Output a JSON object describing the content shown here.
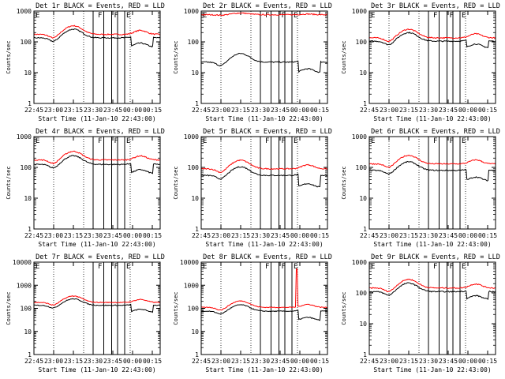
{
  "chart_data": [
    {
      "type": "line",
      "title": "Det 1r BLACK = Events, RED = LLD",
      "xlabel": "Start Time (11-Jan-10 22:43:00)",
      "ylabel": "Counts/sec",
      "yscale": "log",
      "ylim": [
        1,
        1000
      ],
      "x_ticks": [
        "22:45",
        "23:00",
        "23:15",
        "23:30",
        "23:45",
        "00:00",
        "00:15"
      ],
      "y_ticks": [
        "1",
        "10",
        "100",
        "1000"
      ],
      "markers": [
        "F",
        "F",
        "E"
      ],
      "series": [
        {
          "color": "#ff0000",
          "base": 175,
          "amp": 1.0,
          "drop": 1.0
        },
        {
          "color": "#000000",
          "base": 135,
          "amp": 1.0,
          "drop": 0.5
        }
      ]
    },
    {
      "type": "line",
      "title": "Det 2r BLACK = Events, RED = LLD",
      "xlabel": "Start Time (11-Jan-10 22:43:00)",
      "ylabel": "Counts/sec",
      "yscale": "log",
      "ylim": [
        1,
        1000
      ],
      "x_ticks": [
        "22:45",
        "23:00",
        "23:15",
        "23:30",
        "23:45",
        "00:00",
        "00:15"
      ],
      "y_ticks": [
        "1",
        "10",
        "100",
        "1000"
      ],
      "markers": [
        "F",
        "F",
        "E"
      ],
      "series": [
        {
          "color": "#ff0000",
          "base": 760,
          "amp": 0.15,
          "drop": 1.0
        },
        {
          "color": "#000000",
          "base": 22,
          "amp": 1.0,
          "drop": 0.45
        }
      ]
    },
    {
      "type": "line",
      "title": "Det 3r BLACK = Events, RED = LLD",
      "xlabel": "Start Time (11-Jan-10 22:43:00)",
      "ylabel": "Counts/sec",
      "yscale": "log",
      "ylim": [
        1,
        1000
      ],
      "x_ticks": [
        "22:45",
        "23:00",
        "23:15",
        "23:30",
        "23:45",
        "00:00",
        "00:15"
      ],
      "y_ticks": [
        "1",
        "10",
        "100",
        "1000"
      ],
      "markers": [
        "F",
        "F",
        "E"
      ],
      "series": [
        {
          "color": "#ff0000",
          "base": 135,
          "amp": 1.0,
          "drop": 1.0
        },
        {
          "color": "#000000",
          "base": 105,
          "amp": 1.0,
          "drop": 0.6
        }
      ]
    },
    {
      "type": "line",
      "title": "Det 4r BLACK = Events, RED = LLD",
      "xlabel": "Start Time (11-Jan-10 22:43:00)",
      "ylabel": "Counts/sec",
      "yscale": "log",
      "ylim": [
        1,
        1000
      ],
      "x_ticks": [
        "22:45",
        "23:00",
        "23:15",
        "23:30",
        "23:45",
        "00:00",
        "00:15"
      ],
      "y_ticks": [
        "1",
        "10",
        "100",
        "1000"
      ],
      "markers": [
        "F",
        "F",
        "E"
      ],
      "series": [
        {
          "color": "#ff0000",
          "base": 175,
          "amp": 1.0,
          "drop": 1.0
        },
        {
          "color": "#000000",
          "base": 125,
          "amp": 1.0,
          "drop": 0.5
        }
      ]
    },
    {
      "type": "line",
      "title": "Det 5r BLACK = Events, RED = LLD",
      "xlabel": "Start Time (11-Jan-10 22:43:00)",
      "ylabel": "Counts/sec",
      "yscale": "log",
      "ylim": [
        1,
        1000
      ],
      "x_ticks": [
        "22:45",
        "23:00",
        "23:15",
        "23:30",
        "23:45",
        "00:00",
        "00:15"
      ],
      "y_ticks": [
        "1",
        "10",
        "100",
        "1000"
      ],
      "markers": [
        "F",
        "F",
        "E"
      ],
      "series": [
        {
          "color": "#ff0000",
          "base": 90,
          "amp": 1.0,
          "drop": 1.0
        },
        {
          "color": "#000000",
          "base": 55,
          "amp": 1.0,
          "drop": 0.4
        }
      ]
    },
    {
      "type": "line",
      "title": "Det 6r BLACK = Events, RED = LLD",
      "xlabel": "Start Time (11-Jan-10 22:43:00)",
      "ylabel": "Counts/sec",
      "yscale": "log",
      "ylim": [
        1,
        1000
      ],
      "x_ticks": [
        "22:45",
        "23:00",
        "23:15",
        "23:30",
        "23:45",
        "00:00",
        "00:15"
      ],
      "y_ticks": [
        "1",
        "10",
        "100",
        "1000"
      ],
      "markers": [
        "F",
        "F",
        "E"
      ],
      "series": [
        {
          "color": "#ff0000",
          "base": 130,
          "amp": 1.0,
          "drop": 1.0
        },
        {
          "color": "#000000",
          "base": 80,
          "amp": 1.0,
          "drop": 0.45
        }
      ]
    },
    {
      "type": "line",
      "title": "Det 7r BLACK = Events, RED = LLD",
      "xlabel": "Start Time (11-Jan-10 22:43:00)",
      "ylabel": "Counts/sec",
      "yscale": "log",
      "ylim": [
        1,
        10000
      ],
      "x_ticks": [
        "22:45",
        "23:00",
        "23:15",
        "23:30",
        "23:45",
        "00:00",
        "00:15"
      ],
      "y_ticks": [
        "1",
        "10",
        "100",
        "1000",
        "10000"
      ],
      "markers": [
        "F",
        "F",
        "E"
      ],
      "series": [
        {
          "color": "#ff0000",
          "base": 180,
          "amp": 1.0,
          "drop": 1.0
        },
        {
          "color": "#000000",
          "base": 135,
          "amp": 1.0,
          "drop": 0.5
        }
      ]
    },
    {
      "type": "line",
      "title": "Det 8r BLACK = Events, RED = LLD",
      "xlabel": "Start Time (11-Jan-10 22:43:00)",
      "ylabel": "Counts/sec",
      "yscale": "log",
      "ylim": [
        1,
        10000
      ],
      "x_ticks": [
        "22:45",
        "23:00",
        "23:15",
        "23:30",
        "23:45",
        "00:00",
        "00:15"
      ],
      "y_ticks": [
        "1",
        "10",
        "100",
        "1000",
        "10000"
      ],
      "markers": [
        "F",
        "F",
        "E"
      ],
      "spike": true,
      "series": [
        {
          "color": "#ff0000",
          "base": 110,
          "amp": 1.0,
          "drop": 1.0
        },
        {
          "color": "#000000",
          "base": 75,
          "amp": 1.0,
          "drop": 0.4
        }
      ]
    },
    {
      "type": "line",
      "title": "Det 9r BLACK = Events, RED = LLD",
      "xlabel": "Start Time (11-Jan-10 22:43:00)",
      "ylabel": "Counts/sec",
      "yscale": "log",
      "ylim": [
        1,
        1000
      ],
      "x_ticks": [
        "22:45",
        "23:00",
        "23:15",
        "23:30",
        "23:45",
        "00:00",
        "00:15"
      ],
      "y_ticks": [
        "1",
        "10",
        "100",
        "1000"
      ],
      "markers": [
        "F",
        "F",
        "E"
      ],
      "series": [
        {
          "color": "#ff0000",
          "base": 145,
          "amp": 1.0,
          "drop": 1.0
        },
        {
          "color": "#000000",
          "base": 110,
          "amp": 1.0,
          "drop": 0.55
        }
      ]
    }
  ]
}
